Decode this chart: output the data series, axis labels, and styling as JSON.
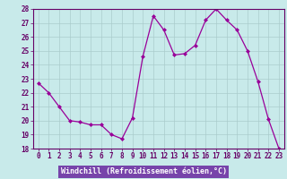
{
  "hours": [
    0,
    1,
    2,
    3,
    4,
    5,
    6,
    7,
    8,
    9,
    10,
    11,
    12,
    13,
    14,
    15,
    16,
    17,
    18,
    19,
    20,
    21,
    22,
    23
  ],
  "values": [
    22.7,
    22.0,
    21.0,
    20.0,
    19.9,
    19.7,
    19.7,
    19.0,
    18.7,
    20.2,
    24.6,
    27.5,
    26.5,
    24.7,
    24.8,
    25.4,
    27.2,
    28.0,
    27.2,
    26.5,
    25.0,
    22.8,
    20.1,
    18.0
  ],
  "line_color": "#990099",
  "bg_color": "#c8eaea",
  "grid_color": "#aacccc",
  "axis_bg": "#c8eaea",
  "ylim_min": 18,
  "ylim_max": 28,
  "yticks": [
    18,
    19,
    20,
    21,
    22,
    23,
    24,
    25,
    26,
    27,
    28
  ],
  "xlabel": "Windchill (Refroidissement éolien,°C)",
  "xlabel_bg": "#7744aa",
  "xlabel_color": "#ffffff",
  "markersize": 2.0,
  "linewidth": 0.9,
  "tick_fontsize": 5.5,
  "label_fontsize": 6.0
}
